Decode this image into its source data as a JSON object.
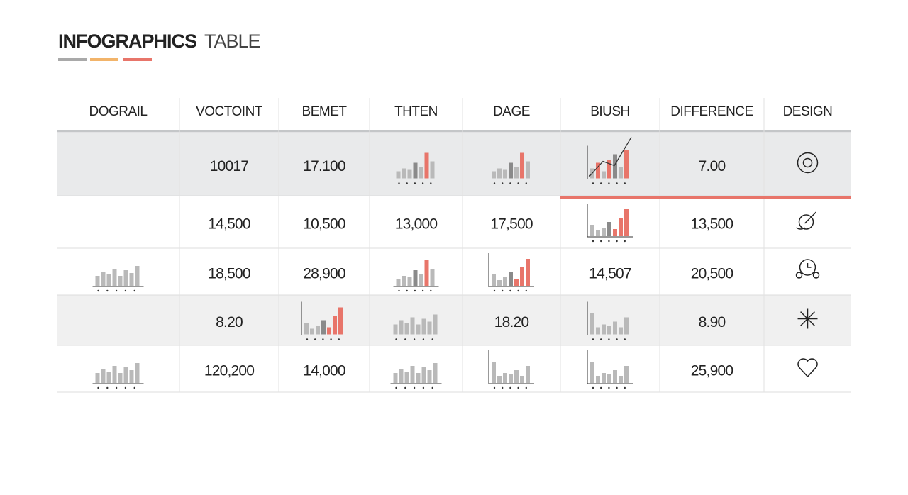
{
  "header": {
    "title_main": "INFOGRAPHICS",
    "title_light": "TABLE"
  },
  "table": {
    "columns": [
      "DOGRAIL",
      "VOCTOINT",
      "BEMET",
      "THTEN",
      "DAGE",
      "BIUSH",
      "DIFFERENCE",
      "DESIGN"
    ],
    "rows": [
      [
        null,
        "10017",
        "17.100",
        null,
        null,
        null,
        "7.00",
        null
      ],
      [
        null,
        "14,500",
        "10,500",
        "13,000",
        "17,500",
        null,
        "13,500",
        null
      ],
      [
        null,
        "18,500",
        "28,900",
        null,
        null,
        "14,507",
        "20,500",
        null
      ],
      [
        null,
        "8.20",
        null,
        null,
        "18.20",
        null,
        "8.90",
        null
      ],
      [
        null,
        "120,200",
        "14,000",
        null,
        null,
        null,
        "25,900",
        null
      ]
    ]
  }
}
